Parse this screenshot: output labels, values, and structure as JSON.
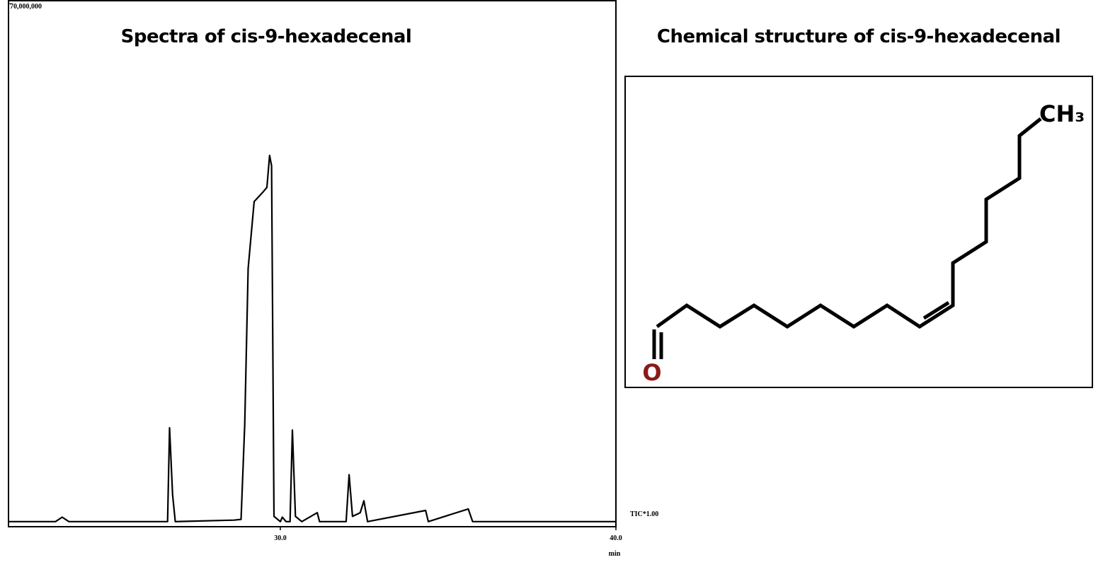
{
  "chart_data": {
    "type": "line",
    "title": "Spectra of cis-9-hexadecenal",
    "x_label": "min",
    "annotation": "TIC*1.00",
    "color": "#000000",
    "x": [
      21.9,
      23.3,
      23.5,
      23.7,
      26.64,
      26.7,
      26.79,
      26.87,
      28.62,
      28.83,
      28.94,
      29.04,
      29.22,
      29.47,
      29.6,
      29.68,
      29.74,
      29.81,
      30.0,
      30.06,
      30.17,
      30.29,
      30.36,
      30.45,
      30.64,
      31.1,
      31.17,
      31.96,
      32.05,
      32.15,
      32.38,
      32.49,
      32.6,
      34.33,
      34.41,
      35.6,
      35.73,
      40.0
    ],
    "values": [
      400000,
      400000,
      1000000,
      400000,
      400000,
      13000000,
      4000000,
      400000,
      600000,
      700000,
      13500000,
      34400000,
      43400000,
      44600000,
      45300000,
      49600000,
      48200000,
      1100000,
      400000,
      1000000,
      400000,
      400000,
      12700000,
      1100000,
      400000,
      1600000,
      400000,
      400000,
      6700000,
      1100000,
      1600000,
      3200000,
      400000,
      1900000,
      400000,
      2100000,
      400000,
      400000
    ],
    "xlim": [
      21.9,
      40
    ],
    "xticks": [
      {
        "value": 30,
        "label": "30.0"
      },
      {
        "value": 40,
        "label": "40.0"
      }
    ],
    "ylim": [
      0,
      70000000
    ],
    "yticks": [
      {
        "value": 70000000,
        "label": "70,000,000"
      }
    ]
  },
  "structure": {
    "title": "Chemical structure of cis-9-hexadecenal",
    "labels": [
      "O",
      "CH₃"
    ]
  }
}
